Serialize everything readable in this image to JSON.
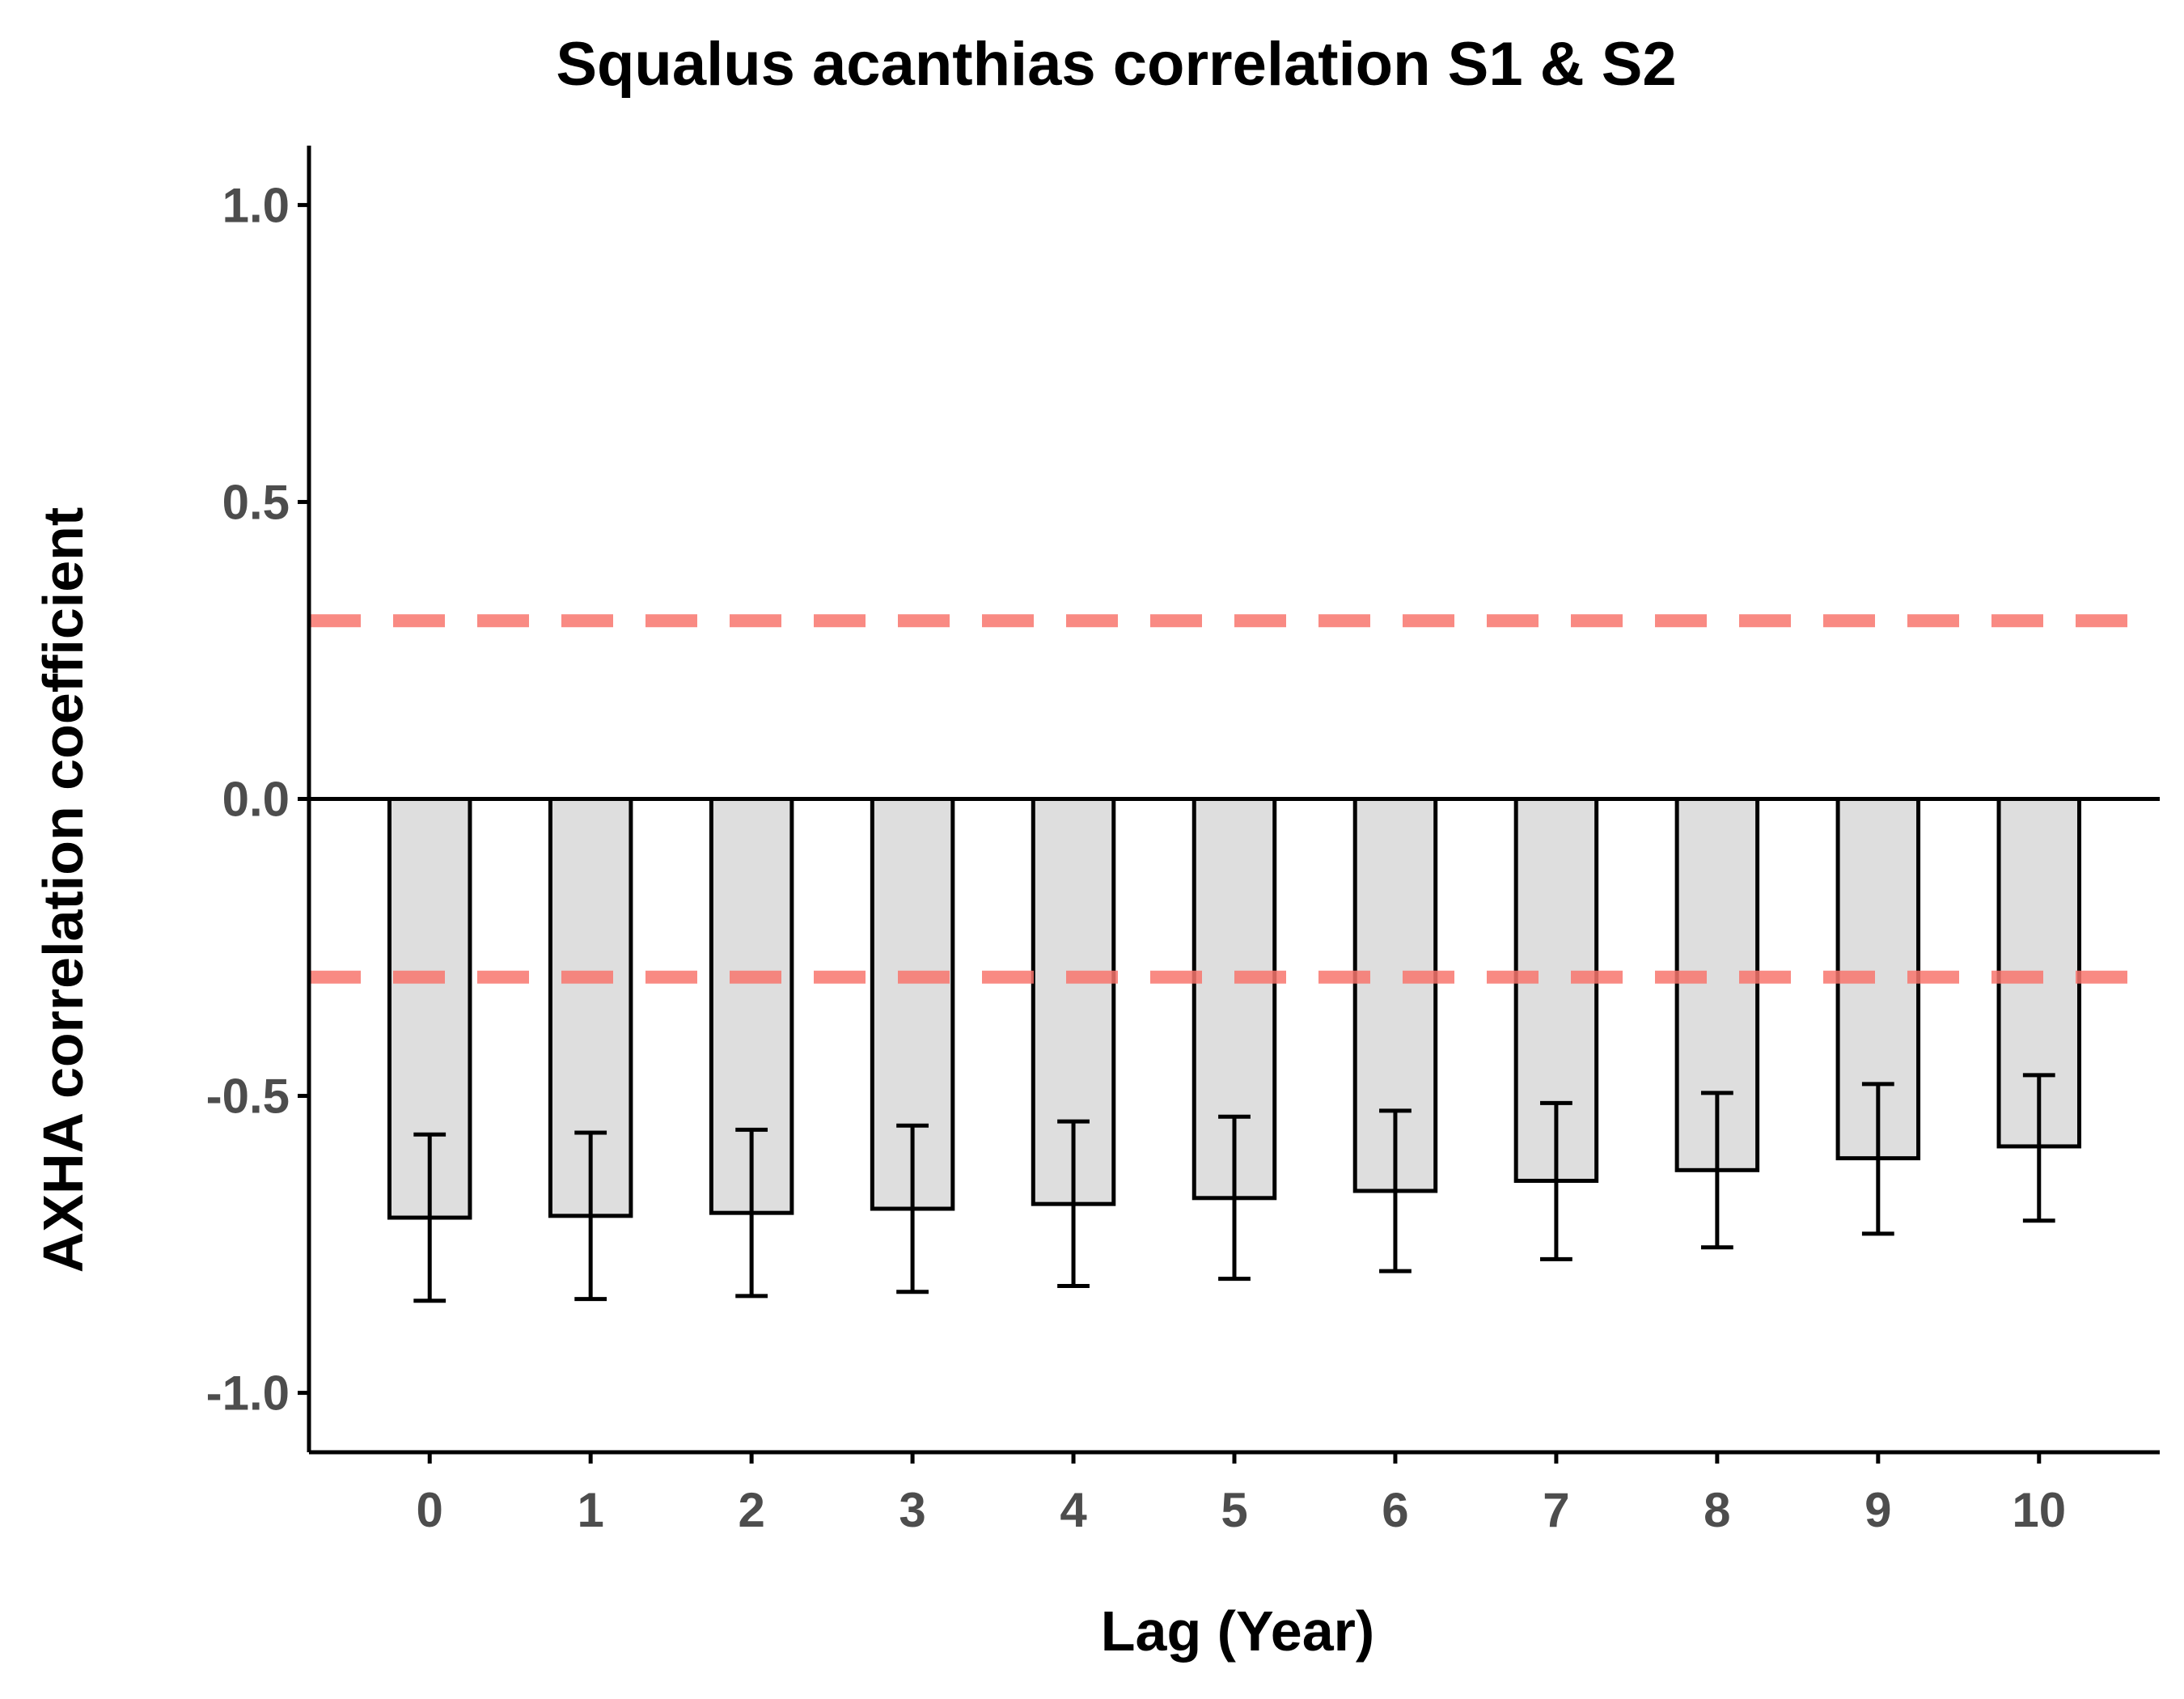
{
  "chart_data": {
    "type": "bar",
    "title": "Squalus acanthias correlation S1 & S2",
    "xlabel": "Lag (Year)",
    "ylabel": "AXHA correlation coefficient",
    "categories": [
      "0",
      "1",
      "2",
      "3",
      "4",
      "5",
      "6",
      "7",
      "8",
      "9",
      "10"
    ],
    "values": [
      -0.705,
      -0.702,
      -0.697,
      -0.69,
      -0.682,
      -0.672,
      -0.66,
      -0.643,
      -0.625,
      -0.605,
      -0.585
    ],
    "error_lower": [
      -0.845,
      -0.842,
      -0.837,
      -0.83,
      -0.82,
      -0.808,
      -0.795,
      -0.775,
      -0.755,
      -0.732,
      -0.71
    ],
    "error_upper": [
      -0.565,
      -0.562,
      -0.557,
      -0.55,
      -0.543,
      -0.535,
      -0.525,
      -0.512,
      -0.495,
      -0.48,
      -0.465
    ],
    "ylim": [
      -1.1,
      1.1
    ],
    "yticks": [
      -1.0,
      -0.5,
      0.0,
      0.5,
      1.0
    ],
    "ytick_labels": [
      "-1.0",
      "-0.5",
      "0.0",
      "0.5",
      "1.0"
    ],
    "reference_lines": [
      0.3,
      -0.3
    ],
    "zero_line": 0.0,
    "grid": false,
    "legend": "none",
    "colors": {
      "bar_fill": "#dedede",
      "bar_stroke": "#000000",
      "reference_line": "#f8766d",
      "axis": "#000000"
    }
  }
}
